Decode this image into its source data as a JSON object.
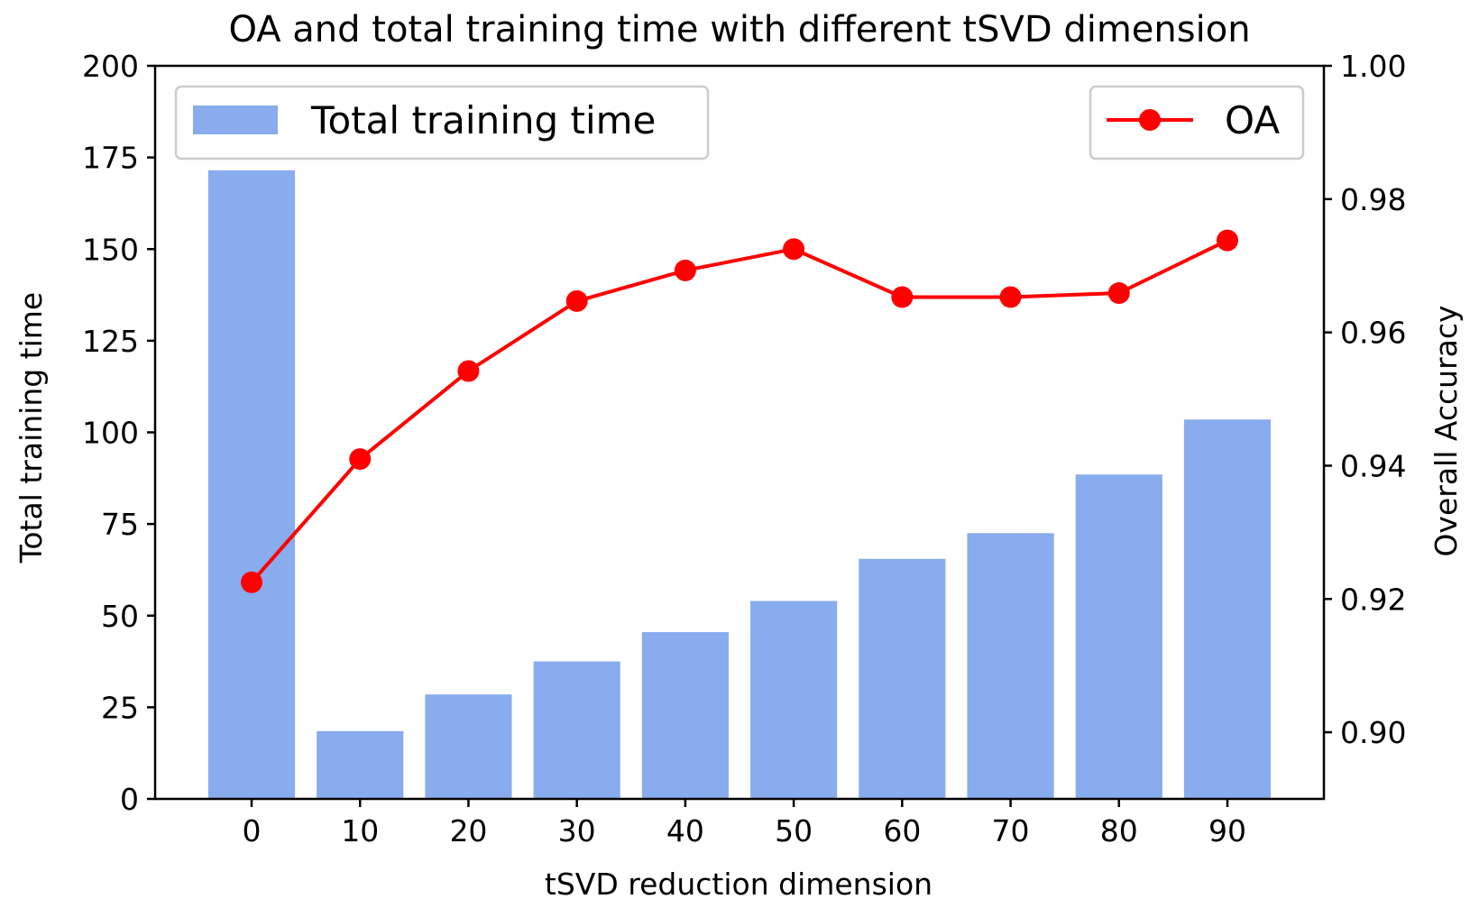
{
  "chart_data": {
    "type": "bar",
    "title": "OA and total training time with different tSVD dimension",
    "xlabel": "tSVD reduction dimension",
    "ylabel": "Total training time",
    "y2label": "Overall Accuracy",
    "categories": [
      "0",
      "10",
      "20",
      "30",
      "40",
      "50",
      "60",
      "70",
      "80",
      "90"
    ],
    "ylim": [
      0,
      200
    ],
    "y2lim": [
      0.89,
      1.0
    ],
    "yticks": [
      "0",
      "25",
      "50",
      "75",
      "100",
      "125",
      "150",
      "175",
      "200"
    ],
    "y2ticks": [
      "0.90",
      "0.92",
      "0.94",
      "0.96",
      "0.98",
      "1.00"
    ],
    "grid": false,
    "series": [
      {
        "name": "Total training time",
        "type": "bar",
        "axis": "left",
        "color": "#89ACEE",
        "values": [
          171.5,
          18.5,
          28.5,
          37.5,
          45.5,
          54,
          65.5,
          72.5,
          88.5,
          103.5
        ]
      },
      {
        "name": "OA",
        "type": "line",
        "axis": "right",
        "color": "#FF0000",
        "values": [
          0.9225,
          0.941,
          0.9542,
          0.9647,
          0.9693,
          0.9725,
          0.9653,
          0.9653,
          0.9659,
          0.9738
        ]
      }
    ],
    "legend": [
      {
        "label": "Total training time",
        "placement": "top-left"
      },
      {
        "label": "OA",
        "placement": "top-right"
      }
    ]
  }
}
